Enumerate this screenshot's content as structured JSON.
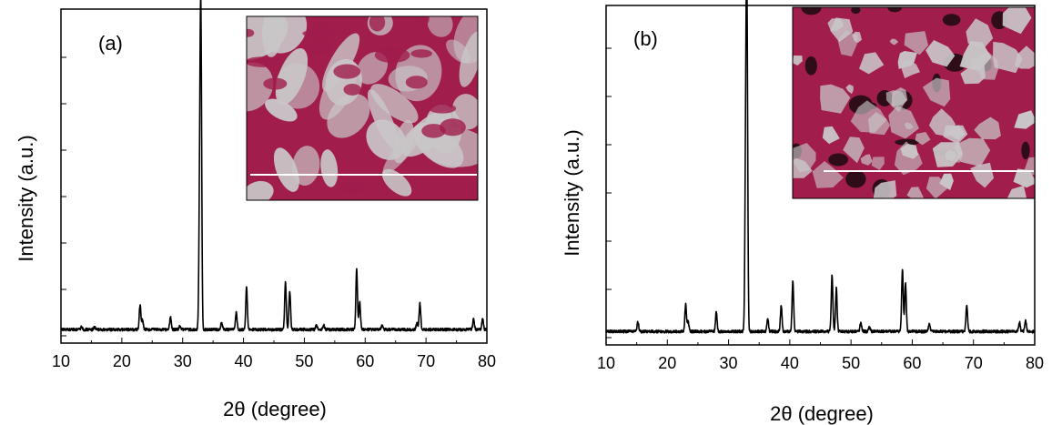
{
  "chart_data": [
    {
      "type": "line",
      "panel_label": "(a)",
      "xlabel_prefix": "2",
      "xlabel_symbol": "θ",
      "xlabel_suffix": " (degree)",
      "ylabel": "Intensity (a.u.)",
      "xlim": [
        10,
        80
      ],
      "ylim": [
        0,
        100
      ],
      "xticks": [
        10,
        20,
        30,
        40,
        50,
        60,
        70,
        80
      ],
      "baseline": 2.3,
      "peaks": [
        {
          "x": 13.4,
          "y": 1.0
        },
        {
          "x": 15.5,
          "y": 0.8
        },
        {
          "x": 23.0,
          "y": 8.0
        },
        {
          "x": 23.4,
          "y": 3.0
        },
        {
          "x": 28.0,
          "y": 4.0
        },
        {
          "x": 29.5,
          "y": 1.0
        },
        {
          "x": 32.8,
          "y": 40.0
        },
        {
          "x": 33.0,
          "y": 93.0
        },
        {
          "x": 36.4,
          "y": 2.5
        },
        {
          "x": 38.8,
          "y": 5.5
        },
        {
          "x": 40.5,
          "y": 13.5
        },
        {
          "x": 46.9,
          "y": 15.5
        },
        {
          "x": 47.6,
          "y": 12.5
        },
        {
          "x": 52.0,
          "y": 1.5
        },
        {
          "x": 53.2,
          "y": 1.5
        },
        {
          "x": 58.6,
          "y": 19.5
        },
        {
          "x": 59.1,
          "y": 9.0
        },
        {
          "x": 62.8,
          "y": 1.5
        },
        {
          "x": 68.5,
          "y": 2.0
        },
        {
          "x": 69.0,
          "y": 8.5
        },
        {
          "x": 77.8,
          "y": 3.5
        },
        {
          "x": 79.3,
          "y": 3.5
        }
      ],
      "inset": {
        "colors": {
          "base": "#a01d4c",
          "light": "#c9c6c8",
          "scale_bar": "#ffffff"
        }
      }
    },
    {
      "type": "line",
      "panel_label": "(b)",
      "xlabel_prefix": "2",
      "xlabel_symbol": "θ",
      "xlabel_suffix": " (degree)",
      "ylabel": "Intensity (a.u.)",
      "xlim": [
        10,
        80
      ],
      "ylim": [
        0,
        100
      ],
      "xticks": [
        10,
        20,
        30,
        40,
        50,
        60,
        70,
        80
      ],
      "baseline": 2.2,
      "peaks": [
        {
          "x": 15.2,
          "y": 3.0
        },
        {
          "x": 23.0,
          "y": 8.5
        },
        {
          "x": 23.4,
          "y": 3.0
        },
        {
          "x": 28.0,
          "y": 6.0
        },
        {
          "x": 32.8,
          "y": 50.0
        },
        {
          "x": 33.0,
          "y": 96.0
        },
        {
          "x": 36.4,
          "y": 4.0
        },
        {
          "x": 38.6,
          "y": 8.0
        },
        {
          "x": 40.5,
          "y": 15.5
        },
        {
          "x": 46.9,
          "y": 17.5
        },
        {
          "x": 47.6,
          "y": 13.5
        },
        {
          "x": 51.6,
          "y": 3.0
        },
        {
          "x": 53.0,
          "y": 1.5
        },
        {
          "x": 58.4,
          "y": 19.5
        },
        {
          "x": 58.9,
          "y": 15.0
        },
        {
          "x": 62.8,
          "y": 2.5
        },
        {
          "x": 68.9,
          "y": 8.0
        },
        {
          "x": 77.5,
          "y": 3.0
        },
        {
          "x": 78.5,
          "y": 3.5
        }
      ],
      "inset": {
        "colors": {
          "base": "#a01d4c",
          "light": "#c9c6c8",
          "scale_bar": "#ffffff"
        }
      }
    }
  ],
  "colors": {
    "line": "#000000",
    "axis": "#000000"
  }
}
